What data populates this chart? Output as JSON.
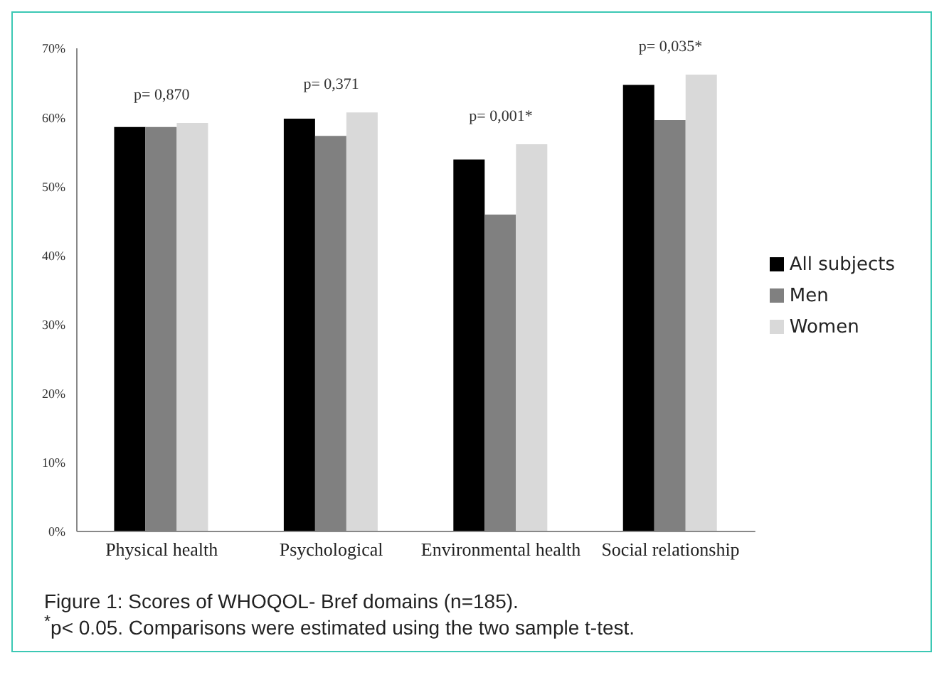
{
  "chart_data": {
    "type": "bar",
    "title": "Figure 1: Scores of WHOQOL- Bref domains (n=185).",
    "annotations": [
      "p= 0,870",
      "p= 0,371",
      "p= 0,001*",
      "p= 0,035*",
      "$^{*}$p< 0.05. Comparisons were estimated using the two sample t-test."
    ],
    "categories": [
      "Physical health",
      "Psychological",
      "Environmental health",
      "Social relationship"
    ],
    "series": [
      {
        "name": "All subjects",
        "color": "#000000",
        "values": [
          58.6,
          59.8,
          53.9,
          64.7
        ]
      },
      {
        "name": "Men",
        "color": "#808080",
        "values": [
          58.6,
          57.3,
          45.9,
          59.6
        ]
      },
      {
        "name": "Women",
        "color": "#d9d9d9",
        "values": [
          59.2,
          60.7,
          56.1,
          66.2
        ]
      }
    ],
    "ylim": [
      0,
      70
    ],
    "yticks": [
      {
        "value": 0,
        "label": "0%"
      },
      {
        "value": 10,
        "label": "10%"
      },
      {
        "value": 20,
        "label": "20%"
      },
      {
        "value": 30,
        "label": "30%"
      },
      {
        "value": 40,
        "label": "40%"
      },
      {
        "value": 50,
        "label": "50%"
      },
      {
        "value": 60,
        "label": "60%"
      },
      {
        "value": 70,
        "label": "70%"
      }
    ],
    "grid": false,
    "legend": "right"
  }
}
